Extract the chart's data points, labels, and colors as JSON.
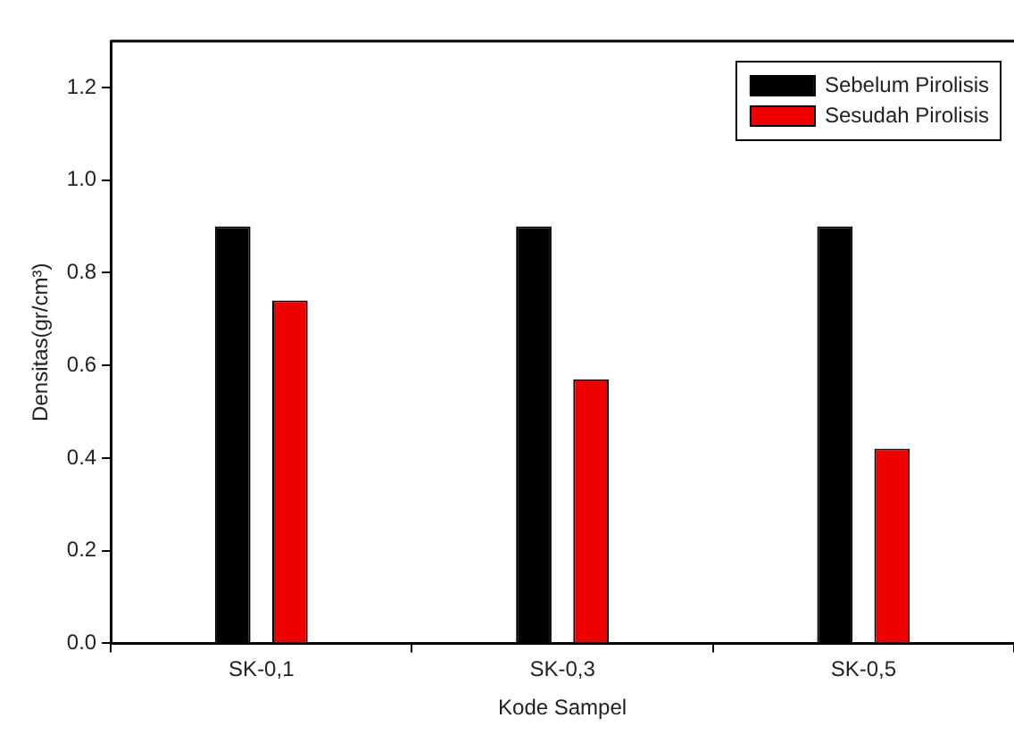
{
  "chart_data": {
    "type": "bar",
    "xlabel": "Kode Sampel",
    "ylabel": "Densitas(gr/cm³)",
    "categories": [
      "SK-0,1",
      "SK-0,3",
      "SK-0,5"
    ],
    "series": [
      {
        "name": "Sebelum Pirolisis",
        "color": "#000000",
        "values": [
          0.9,
          0.9,
          0.9
        ]
      },
      {
        "name": "Sesudah Pirolisis",
        "color": "#ee0000",
        "values": [
          0.74,
          0.57,
          0.42
        ]
      }
    ],
    "ylim": [
      0,
      1.3
    ],
    "yticks": [
      {
        "value": 0,
        "label": "0.0"
      },
      {
        "value": 0.2,
        "label": "0.2"
      },
      {
        "value": 0.4,
        "label": "0.4"
      },
      {
        "value": 0.6,
        "label": "0.6"
      },
      {
        "value": 0.8,
        "label": "0.8"
      },
      {
        "value": 1,
        "label": "1.0"
      },
      {
        "value": 1.2,
        "label": "1.2"
      }
    ],
    "grid": false,
    "legend": "top right"
  }
}
